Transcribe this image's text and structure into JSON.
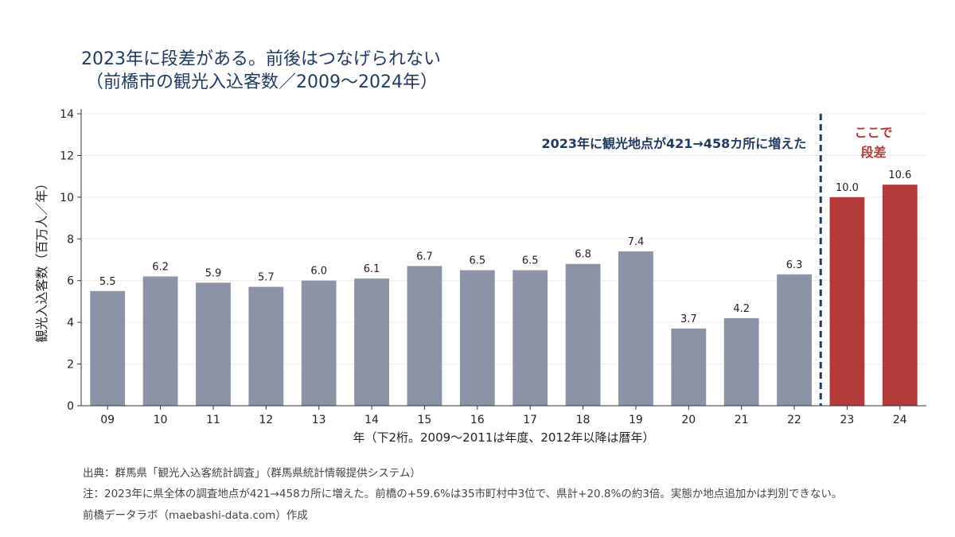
{
  "title": "2023年に段差がある。前後はつなげられない",
  "subtitle": "（前橋市の観光入込客数／2009〜2024年）",
  "chart_data": {
    "type": "bar",
    "categories": [
      "09",
      "10",
      "11",
      "12",
      "13",
      "14",
      "15",
      "16",
      "17",
      "18",
      "19",
      "20",
      "21",
      "22",
      "23",
      "24"
    ],
    "values": [
      5.5,
      6.2,
      5.9,
      5.7,
      6.0,
      6.1,
      6.7,
      6.5,
      6.5,
      6.8,
      7.4,
      3.7,
      4.2,
      6.3,
      10.0,
      10.6
    ],
    "value_labels": [
      "5.5",
      "6.2",
      "5.9",
      "5.7",
      "6.0",
      "6.1",
      "6.7",
      "6.5",
      "6.5",
      "6.8",
      "7.4",
      "3.7",
      "4.2",
      "6.3",
      "10.0",
      "10.6"
    ],
    "highlight_from_index": 14,
    "xlabel": "年（下2桁。2009〜2011は年度、2012年以降は暦年）",
    "ylabel": "観光入込客数（百万人／年）",
    "ylim": [
      0,
      14
    ],
    "yticks": [
      "0",
      "2",
      "4",
      "6",
      "8",
      "10",
      "12",
      "14"
    ],
    "grid": true,
    "annotation": "2023年に観光地点が421→458カ所に増えた",
    "step_label_line1": "ここで",
    "step_label_line2": "段差",
    "colors": {
      "normal": "#8a94a6",
      "highlight": "#b23a3a",
      "divider": "#1f3a5f"
    }
  },
  "footer": {
    "source": "出典：群馬県「観光入込客統計調査」（群馬県統計情報提供システム）",
    "note": "注：2023年に県全体の調査地点が421→458カ所に増えた。前橋の+59.6%は35市町村中3位で、県計+20.8%の約3倍。実態か地点追加かは判別できない。",
    "credit": "前橋データラボ（maebashi-data.com）作成"
  }
}
